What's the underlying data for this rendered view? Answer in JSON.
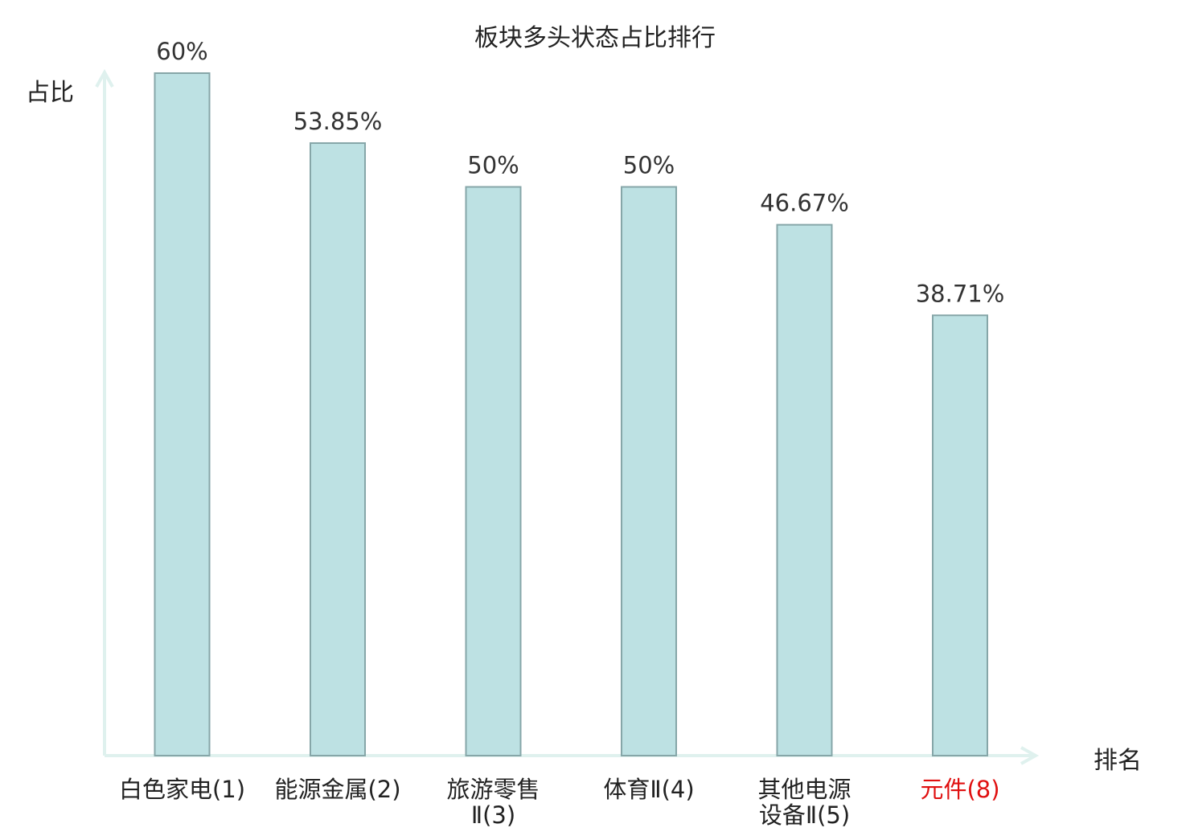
{
  "chart_data": {
    "type": "bar",
    "title": "板块多头状态占比排行",
    "ylabel": "占比",
    "xlabel": "排名",
    "categories": [
      [
        "白色家电(1)"
      ],
      [
        "能源金属(2)"
      ],
      [
        "旅游零售",
        "Ⅱ(3)"
      ],
      [
        "体育Ⅱ(4)"
      ],
      [
        "其他电源",
        "设备Ⅱ(5)"
      ],
      [
        "元件(8)"
      ]
    ],
    "values": [
      60,
      53.85,
      50,
      50,
      46.67,
      38.71
    ],
    "value_labels": [
      "60%",
      "53.85%",
      "50%",
      "50%",
      "46.67%",
      "38.71%"
    ],
    "highlight_index": 5,
    "ylim": [
      0,
      60
    ],
    "grid": false,
    "legend": "none",
    "colors": {
      "bar_fill": "#bde1e3",
      "bar_stroke": "#86a6a8",
      "axis": "#dff1ee",
      "label_text": "#222222",
      "value_text": "#333333",
      "highlight_text": "#e01010"
    }
  }
}
